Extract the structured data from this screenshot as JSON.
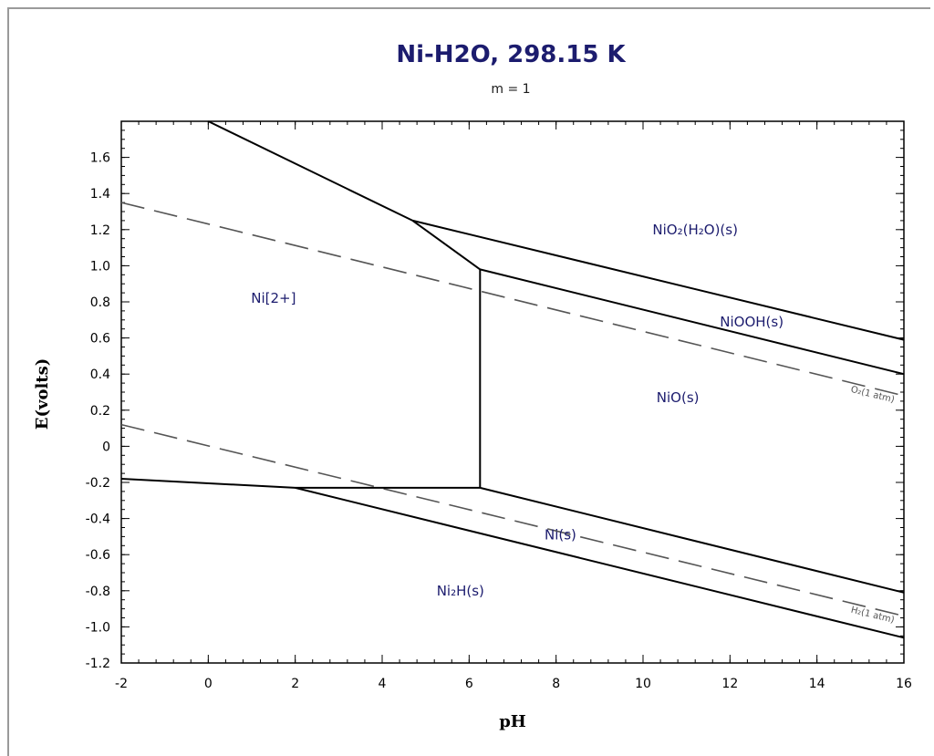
{
  "chart_data": {
    "type": "line",
    "title": "Ni-H2O, 298.15 K",
    "subtitle": "m = 1",
    "xlabel": "pH",
    "ylabel": "E(volts)",
    "xlim": [
      -2,
      16
    ],
    "ylim": [
      -1.2,
      1.8
    ],
    "xticks": [
      "-2",
      "0",
      "2",
      "4",
      "6",
      "8",
      "10",
      "12",
      "14",
      "16"
    ],
    "xtick_values": [
      -2,
      0,
      2,
      4,
      6,
      8,
      10,
      12,
      14,
      16
    ],
    "yticks": [
      "1.6",
      "1.4",
      "1.2",
      "1.0",
      "0.8",
      "0.6",
      "0.4",
      "0.2",
      "0",
      "-0.2",
      "-0.4",
      "-0.6",
      "-0.8",
      "-1.0",
      "-1.2"
    ],
    "ytick_values": [
      1.6,
      1.4,
      1.2,
      1.0,
      0.8,
      0.6,
      0.4,
      0.2,
      0,
      -0.2,
      -0.4,
      -0.6,
      -0.8,
      -1.0,
      -1.2
    ],
    "grid": false,
    "line_color": "#000000",
    "dashed_color": "#555555",
    "boundaries": [
      {
        "points": [
          [
            0,
            1.8
          ],
          [
            4.7,
            1.25
          ]
        ]
      },
      {
        "points": [
          [
            4.7,
            1.25
          ],
          [
            16,
            0.59
          ]
        ]
      },
      {
        "points": [
          [
            4.7,
            1.25
          ],
          [
            6.25,
            0.98
          ]
        ]
      },
      {
        "points": [
          [
            6.25,
            0.98
          ],
          [
            16,
            0.4
          ]
        ]
      },
      {
        "points": [
          [
            6.25,
            0.98
          ],
          [
            6.25,
            -0.23
          ]
        ]
      },
      {
        "points": [
          [
            -2,
            -0.18
          ],
          [
            2,
            -0.23
          ],
          [
            6.25,
            -0.23
          ]
        ]
      },
      {
        "points": [
          [
            2,
            -0.23
          ],
          [
            16,
            -1.06
          ]
        ]
      },
      {
        "points": [
          [
            6.25,
            -0.23
          ],
          [
            16,
            -0.81
          ]
        ]
      }
    ],
    "reference_lines": [
      {
        "label": "O₂(1 atm)",
        "points": [
          [
            -2,
            1.35
          ],
          [
            16,
            0.28
          ]
        ]
      },
      {
        "label": "H₂(1 atm)",
        "points": [
          [
            -2,
            0.12
          ],
          [
            16,
            -0.94
          ]
        ]
      }
    ],
    "regions": [
      {
        "label": "NiO₂(H₂O)(s)",
        "x": 11.2,
        "y": 1.2
      },
      {
        "label": "Ni[2+]",
        "x": 1.5,
        "y": 0.82
      },
      {
        "label": "NiOOH(s)",
        "x": 12.5,
        "y": 0.69
      },
      {
        "label": "NiO(s)",
        "x": 10.8,
        "y": 0.27
      },
      {
        "label": "Ni(s)",
        "x": 8.1,
        "y": -0.49
      },
      {
        "label": "Ni₂H(s)",
        "x": 5.8,
        "y": -0.8
      }
    ]
  }
}
